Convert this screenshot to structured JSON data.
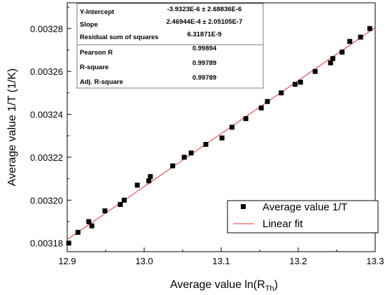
{
  "chart_data": {
    "type": "scatter",
    "xlabel_main": "Average value ln(R",
    "xlabel_sub": "Th",
    "xlabel_close": ")",
    "ylabel": "Average value 1/T (1/K)",
    "xlim": [
      12.9,
      13.3
    ],
    "ylim": [
      0.003176,
      0.003292
    ],
    "x_ticks": [
      12.9,
      13.0,
      13.1,
      13.2,
      13.3
    ],
    "x_tick_labels": [
      "12.9",
      "13.0",
      "13.1",
      "13.2",
      "13.3"
    ],
    "y_ticks": [
      0.00318,
      0.0032,
      0.00322,
      0.00324,
      0.00326,
      0.00328
    ],
    "y_tick_labels": [
      "0.00318",
      "0.00320",
      "0.00322",
      "0.00324",
      "0.00326",
      "0.00328"
    ],
    "grid": false,
    "legend_position": "bottom-right",
    "series": [
      {
        "name": "Average value 1/T",
        "marker": "square",
        "color": "#000000",
        "points": [
          [
            12.902,
            0.00318
          ],
          [
            12.914,
            0.003185
          ],
          [
            12.928,
            0.00319
          ],
          [
            12.932,
            0.003188
          ],
          [
            12.949,
            0.003195
          ],
          [
            12.969,
            0.003198
          ],
          [
            12.974,
            0.0032
          ],
          [
            12.991,
            0.003207
          ],
          [
            13.006,
            0.003209
          ],
          [
            13.008,
            0.003211
          ],
          [
            13.037,
            0.003216
          ],
          [
            13.052,
            0.00322
          ],
          [
            13.061,
            0.003222
          ],
          [
            13.08,
            0.003226
          ],
          [
            13.101,
            0.003229
          ],
          [
            13.114,
            0.003234
          ],
          [
            13.132,
            0.003238
          ],
          [
            13.152,
            0.003243
          ],
          [
            13.16,
            0.003246
          ],
          [
            13.178,
            0.00325
          ],
          [
            13.196,
            0.003254
          ],
          [
            13.203,
            0.003255
          ],
          [
            13.222,
            0.00326
          ],
          [
            13.242,
            0.003264
          ],
          [
            13.245,
            0.003266
          ],
          [
            13.257,
            0.003269
          ],
          [
            13.267,
            0.003274
          ],
          [
            13.281,
            0.003276
          ],
          [
            13.293,
            0.00328
          ]
        ]
      },
      {
        "name": "Linear fit",
        "type": "line",
        "color": "#e03030",
        "intercept": -3.9323e-06,
        "slope": 0.000246944,
        "x_range": [
          12.9,
          13.3
        ]
      }
    ]
  },
  "stats_table": {
    "rows": [
      {
        "label": "Y-Intercept",
        "value": "-3.9323E-6 ± 2.68836E-6"
      },
      {
        "label": "Slope",
        "value": "2.46944E-4 ± 2.05105E-7"
      },
      {
        "label": "Residual sum of squares",
        "value": "6.31871E-9"
      },
      {
        "label": "Pearson R",
        "value": "0.99894"
      },
      {
        "label": "R-square",
        "value": "0.99789"
      },
      {
        "label": "Adj. R-square",
        "value": "0.99789"
      }
    ]
  },
  "legend": {
    "items": [
      {
        "label": "Average value 1/T",
        "symbol": "square"
      },
      {
        "label": "Linear fit",
        "symbol": "line"
      }
    ]
  }
}
